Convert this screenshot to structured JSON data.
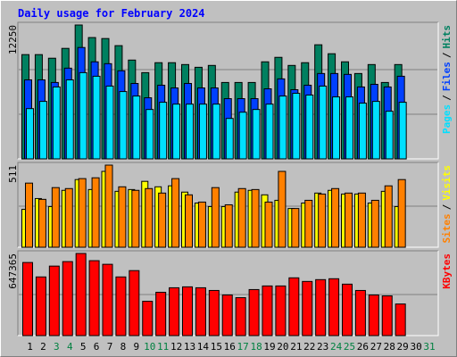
{
  "title": "Daily usage for February 2024",
  "chart_data": [
    {
      "type": "bar",
      "ylim": [
        0,
        12250
      ],
      "yticks": [
        12250
      ],
      "legend_separator": "/",
      "series": [
        {
          "name": "Hits",
          "color": "#008060",
          "values": [
            9540,
            9540,
            9210,
            10110,
            12250,
            11100,
            11010,
            10360,
            9040,
            7890,
            8800,
            8800,
            8630,
            8380,
            8550,
            6990,
            6990,
            6990,
            8880,
            9290,
            8550,
            8800,
            10440,
            9620,
            8880,
            7810,
            8630,
            6990,
            8630,
            null,
            null
          ]
        },
        {
          "name": "Files",
          "color": "#0040ff",
          "values": [
            7230,
            7230,
            6990,
            8300,
            10190,
            8880,
            8710,
            8060,
            6900,
            5590,
            6740,
            6490,
            6900,
            6490,
            6490,
            5510,
            5510,
            5510,
            6410,
            7320,
            6330,
            6740,
            7810,
            7810,
            7730,
            6580,
            6820,
            6580,
            7560,
            null,
            null
          ]
        },
        {
          "name": "Pages",
          "color": "#00e0ff",
          "values": [
            4600,
            5260,
            6580,
            7230,
            7890,
            7560,
            6660,
            6160,
            5750,
            4520,
            5180,
            5010,
            5010,
            5010,
            5010,
            3700,
            4270,
            4520,
            5010,
            5750,
            6000,
            5840,
            6660,
            5670,
            5670,
            5100,
            5260,
            4360,
            5180,
            null,
            null
          ]
        }
      ]
    },
    {
      "type": "bar",
      "ylim": [
        0,
        511
      ],
      "yticks": [
        511
      ],
      "legend_separator": "/",
      "series": [
        {
          "name": "Visits",
          "color": "#ffff00",
          "values": [
            236,
            303,
            253,
            354,
            421,
            359,
            472,
            348,
            359,
            410,
            376,
            382,
            343,
            275,
            253,
            253,
            343,
            354,
            326,
            292,
            241,
            275,
            337,
            354,
            331,
            331,
            275,
            348,
            253,
            null,
            null
          ]
        },
        {
          "name": "Sites",
          "color": "#ff8000",
          "values": [
            399,
            298,
            371,
            365,
            427,
            432,
            511,
            376,
            354,
            365,
            337,
            427,
            326,
            281,
            371,
            264,
            365,
            359,
            281,
            472,
            241,
            292,
            331,
            365,
            337,
            337,
            292,
            382,
            421,
            null,
            null
          ]
        }
      ]
    },
    {
      "type": "bar",
      "ylim": [
        0,
        647365
      ],
      "yticks": [
        647365
      ],
      "categories": [
        "1",
        "2",
        "3",
        "4",
        "5",
        "6",
        "7",
        "8",
        "9",
        "10",
        "11",
        "12",
        "13",
        "14",
        "15",
        "16",
        "17",
        "18",
        "19",
        "20",
        "21",
        "22",
        "23",
        "24",
        "25",
        "26",
        "27",
        "28",
        "29",
        "30",
        "31"
      ],
      "category_colors": [
        "#000000",
        "#000000",
        "#008040",
        "#008040",
        "#000000",
        "#000000",
        "#000000",
        "#000000",
        "#000000",
        "#008040",
        "#008040",
        "#000000",
        "#000000",
        "#000000",
        "#000000",
        "#000000",
        "#008040",
        "#008040",
        "#000000",
        "#000000",
        "#000000",
        "#000000",
        "#000000",
        "#008040",
        "#008040",
        "#000000",
        "#000000",
        "#000000",
        "#000000",
        "#000000",
        "#008040"
      ],
      "series": [
        {
          "name": "KBytes",
          "color": "#ff0000",
          "values": [
            576200,
            462400,
            547800,
            583300,
            647365,
            590500,
            562000,
            462400,
            512200,
            270300,
            341500,
            377000,
            384200,
            377000,
            355700,
            320100,
            298800,
            362800,
            391300,
            391300,
            455300,
            426800,
            441100,
            448200,
            405500,
            355700,
            320100,
            313000,
            249000,
            null,
            null
          ]
        }
      ]
    }
  ]
}
